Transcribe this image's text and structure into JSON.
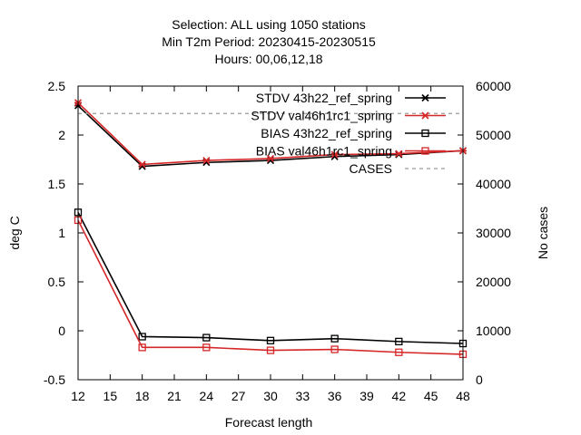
{
  "chart_data": {
    "type": "line",
    "title_lines": [
      "Selection: ALL using  1050 stations",
      "Min T2m   Period: 20230415-20230515",
      "Hours:  00,06,12,18"
    ],
    "xlabel": "Forecast length",
    "ylabel": "deg C",
    "y2label": "No cases",
    "xlim": [
      12,
      48
    ],
    "ylim": [
      -0.5,
      2.5
    ],
    "y2lim": [
      0,
      60000
    ],
    "xticks": [
      "12",
      "15",
      "18",
      "21",
      "24",
      "27",
      "30",
      "33",
      "36",
      "39",
      "42",
      "45",
      "48"
    ],
    "yticks": [
      "-0.5",
      "0",
      "0.5",
      "1",
      "1.5",
      "2",
      "2.5"
    ],
    "y2ticks": [
      "0",
      "10000",
      "20000",
      "30000",
      "40000",
      "50000",
      "60000"
    ],
    "legend_position": "top-right",
    "x": [
      12,
      18,
      24,
      30,
      36,
      42,
      48
    ],
    "series": [
      {
        "name": "STDV 43h22_ref_spring",
        "axis": "y1",
        "color": "#000000",
        "marker": "asterisk",
        "dash": "solid",
        "values": [
          2.3,
          1.68,
          1.72,
          1.74,
          1.78,
          1.8,
          1.84
        ]
      },
      {
        "name": "STDV val46h1rc1_spring",
        "axis": "y1",
        "color": "#d62728",
        "marker": "asterisk",
        "dash": "solid",
        "values": [
          2.33,
          1.7,
          1.74,
          1.76,
          1.8,
          1.81,
          1.84
        ]
      },
      {
        "name": "BIAS 43h22_ref_spring",
        "axis": "y1",
        "color": "#000000",
        "marker": "square",
        "dash": "solid",
        "values": [
          1.21,
          -0.06,
          -0.07,
          -0.1,
          -0.08,
          -0.11,
          -0.13
        ]
      },
      {
        "name": "BIAS val46h1rc1_spring",
        "axis": "y1",
        "color": "#d62728",
        "marker": "square",
        "dash": "solid",
        "values": [
          1.13,
          -0.17,
          -0.17,
          -0.2,
          -0.19,
          -0.22,
          -0.24
        ]
      },
      {
        "name": "CASES",
        "axis": "y2",
        "color": "#999999",
        "marker": "none",
        "dash": "dashed",
        "values": [
          54400,
          54400,
          54400,
          54400,
          54400,
          54400,
          54400
        ]
      }
    ]
  }
}
